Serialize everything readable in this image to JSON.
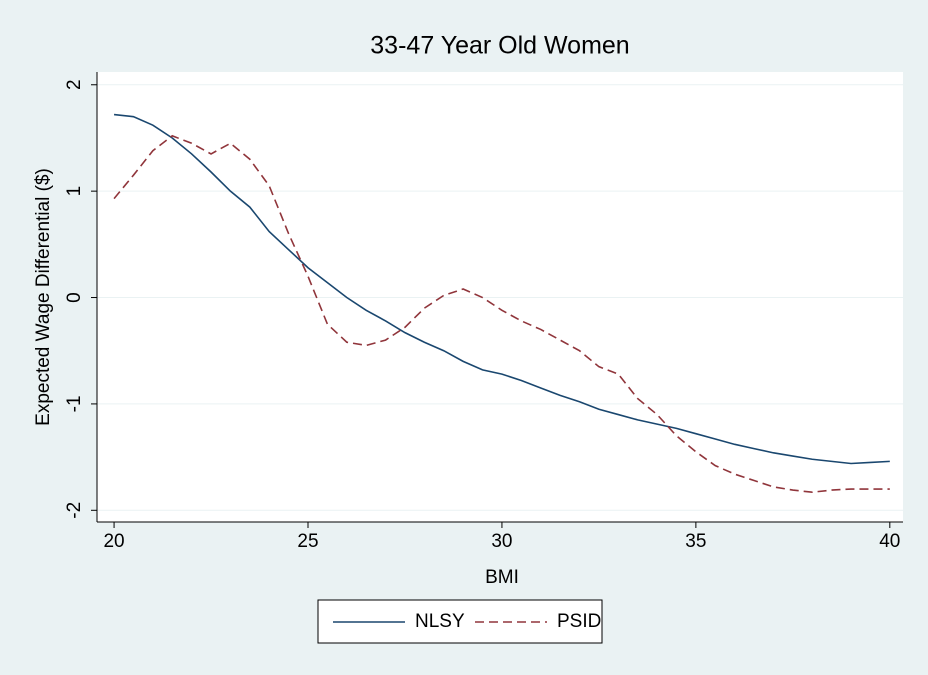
{
  "chart_data": {
    "type": "line",
    "title": "33-47 Year Old Women",
    "x_label": "BMI",
    "y_label": "Expected Wage Differential ($)",
    "x": [
      20,
      20.5,
      21,
      21.5,
      22,
      22.5,
      23,
      23.5,
      24,
      24.5,
      25,
      25.5,
      26,
      26.5,
      27,
      27.5,
      28,
      28.5,
      29,
      29.5,
      30,
      30.5,
      31,
      31.5,
      32,
      32.5,
      33,
      33.5,
      34,
      34.5,
      35,
      35.5,
      36,
      36.5,
      37,
      37.5,
      38,
      38.5,
      39,
      39.5,
      40
    ],
    "series": [
      {
        "name": "NLSY",
        "color": "#1a476f",
        "style": "solid",
        "values": [
          1.72,
          1.7,
          1.62,
          1.5,
          1.35,
          1.18,
          1.0,
          0.85,
          0.62,
          0.45,
          0.28,
          0.14,
          0.0,
          -0.12,
          -0.22,
          -0.33,
          -0.42,
          -0.5,
          -0.6,
          -0.68,
          -0.72,
          -0.78,
          -0.85,
          -0.92,
          -0.98,
          -1.05,
          -1.1,
          -1.15,
          -1.19,
          -1.23,
          -1.28,
          -1.33,
          -1.38,
          -1.42,
          -1.46,
          -1.49,
          -1.52,
          -1.54,
          -1.56,
          -1.55,
          -1.54
        ]
      },
      {
        "name": "PSID",
        "color": "#90353b",
        "style": "dashed",
        "values": [
          0.93,
          1.15,
          1.38,
          1.52,
          1.45,
          1.35,
          1.45,
          1.3,
          1.05,
          0.6,
          0.2,
          -0.25,
          -0.42,
          -0.45,
          -0.4,
          -0.28,
          -0.1,
          0.02,
          0.08,
          0.0,
          -0.12,
          -0.22,
          -0.3,
          -0.4,
          -0.5,
          -0.65,
          -0.72,
          -0.95,
          -1.1,
          -1.3,
          -1.45,
          -1.58,
          -1.66,
          -1.72,
          -1.78,
          -1.81,
          -1.83,
          -1.81,
          -1.8,
          -1.8,
          -1.8
        ]
      }
    ],
    "xlim": [
      19.56,
      40.34
    ],
    "ylim": [
      -2.11,
      2.12
    ],
    "xticks": [
      20,
      25,
      30,
      35,
      40
    ],
    "yticks": [
      -2,
      -1,
      0,
      1,
      2
    ],
    "grid": true,
    "legend": "bottom"
  }
}
